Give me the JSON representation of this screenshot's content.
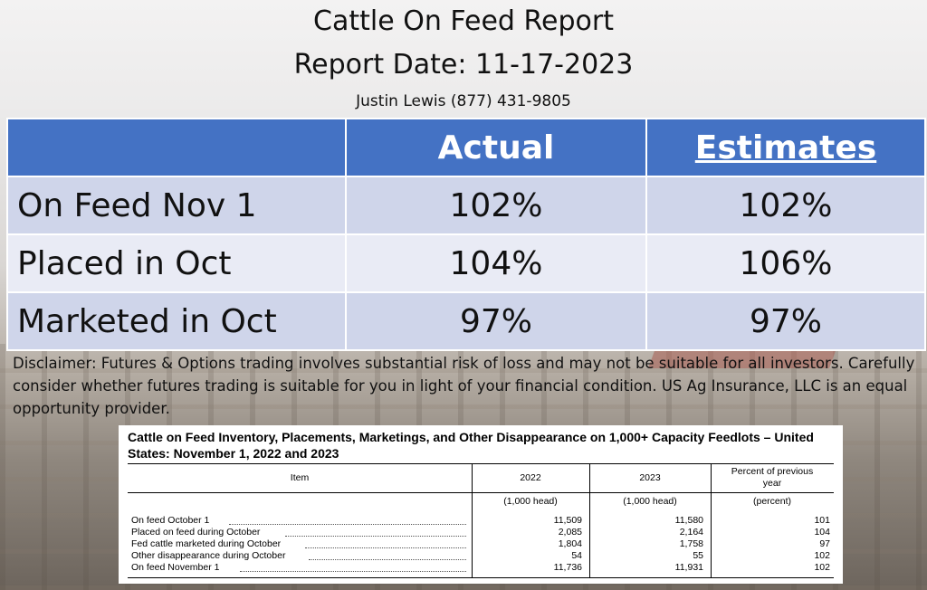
{
  "header": {
    "title": "Cattle On Feed Report",
    "report_date": "Report Date: 11-17-2023",
    "contact": "Justin Lewis (877) 431-9805"
  },
  "summary_table": {
    "columns": [
      "",
      "Actual",
      "Estimates"
    ],
    "rows": [
      {
        "label": "On Feed Nov 1",
        "actual": "102%",
        "estimate": "102%"
      },
      {
        "label": "Placed in Oct",
        "actual": "104%",
        "estimate": "106%"
      },
      {
        "label": "Marketed in Oct",
        "actual": "97%",
        "estimate": "97%"
      }
    ]
  },
  "disclaimer": "Disclaimer:  Futures & Options trading involves substantial risk of loss and may not be suitable for all investors.  Carefully consider whether futures trading is suitable for you in light of your financial condition. US Ag Insurance, LLC is an equal opportunity provider.",
  "usda_report": {
    "title": "Cattle on Feed Inventory, Placements, Marketings, and Other Disappearance on 1,000+ Capacity Feedlots – United States: November 1, 2022 and 2023",
    "headers": [
      "Item",
      "2022",
      "2023",
      "Percent of previous year"
    ],
    "units": [
      "",
      "(1,000 head)",
      "(1,000 head)",
      "(percent)"
    ],
    "rows": [
      {
        "item": "On feed October 1",
        "y2022": "11,509",
        "y2023": "11,580",
        "pct": "101"
      },
      {
        "item": "Placed on feed during October",
        "y2022": "2,085",
        "y2023": "2,164",
        "pct": "104"
      },
      {
        "item": "Fed cattle marketed during October",
        "y2022": "1,804",
        "y2023": "1,758",
        "pct": "97"
      },
      {
        "item": "Other disappearance during October",
        "y2022": "54",
        "y2023": "55",
        "pct": "102"
      },
      {
        "item": "On feed November 1",
        "y2022": "11,736",
        "y2023": "11,931",
        "pct": "102"
      }
    ]
  }
}
